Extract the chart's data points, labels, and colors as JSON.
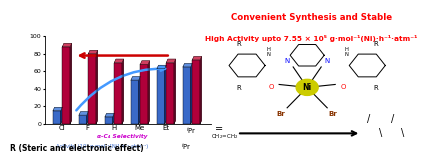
{
  "categories": [
    "Cl",
    "F",
    "H",
    "Me",
    "Et"
  ],
  "red_bar_values": [
    88,
    80,
    70,
    68,
    70
  ],
  "blue_bar_values": [
    15,
    10,
    8,
    50,
    63
  ],
  "ipr_red": 73,
  "ipr_blue": 65,
  "title_line1": "Convenient Synthesis and Stable",
  "title_line2": "High Activity upto 7.55 × 10⁵ g·mol⁻¹(Ni)·h⁻¹·atm⁻¹",
  "xlabel": "R (Steric and electronic effect)",
  "ylabel_blue": "Activity (10⁵ g·mol⁻¹[Ni]·h⁻¹·atm⁻¹)",
  "ylabel_red": "α-C₄ Selectivity",
  "ylim": [
    0,
    100
  ],
  "yticks": [
    0,
    20,
    40,
    60,
    80,
    100
  ],
  "red_color": "#B0003A",
  "blue_color": "#3A6AC8",
  "red_dark": "#7A0028",
  "blue_dark": "#1A3A88",
  "red_top": "#D04060",
  "blue_top": "#6090E0",
  "title_color": "#FF0000",
  "arrow_red_color": "#CC0000",
  "arrow_blue_color": "#4499FF",
  "bg_color": "#FFFFFF"
}
